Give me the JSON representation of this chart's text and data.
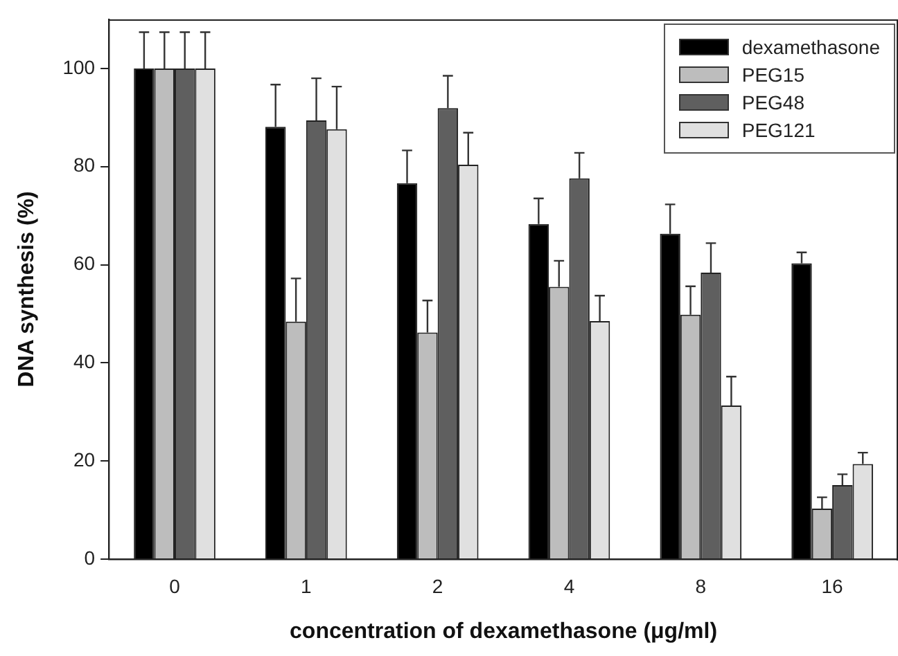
{
  "chart_data": {
    "type": "bar",
    "xlabel": "concentration of dexamethasone (μg/ml)",
    "ylabel": "DNA synthesis (%)",
    "categories": [
      "0",
      "1",
      "2",
      "4",
      "8",
      "16"
    ],
    "series": [
      {
        "name": "dexamethasone",
        "color": "#000000",
        "values": [
          100,
          88.1,
          76.6,
          68.3,
          66.3,
          60.3
        ],
        "errors": [
          [
            100,
            107.4
          ],
          [
            88.1,
            96.7
          ],
          [
            76.6,
            83.3
          ],
          [
            68.3,
            73.5
          ],
          [
            66.3,
            72.3
          ],
          [
            60.3,
            62.5
          ]
        ]
      },
      {
        "name": "PEG15",
        "color": "#bdbdbd",
        "values": [
          100,
          48.4,
          46.2,
          55.5,
          49.8,
          10.3
        ],
        "errors": [
          [
            100,
            107.4
          ],
          [
            48.4,
            57.2
          ],
          [
            46.2,
            52.7
          ],
          [
            55.5,
            60.8
          ],
          [
            49.8,
            55.6
          ],
          [
            10.3,
            12.6
          ]
        ]
      },
      {
        "name": "PEG48",
        "color": "#5f5f5f",
        "values": [
          100,
          89.4,
          91.9,
          77.6,
          58.4,
          15.1
        ],
        "errors": [
          [
            100,
            107.4
          ],
          [
            89.4,
            98.0
          ],
          [
            91.9,
            98.5
          ],
          [
            77.6,
            82.8
          ],
          [
            58.4,
            64.4
          ],
          [
            15.1,
            17.3
          ]
        ]
      },
      {
        "name": "PEG121",
        "color": "#e0e0e0",
        "values": [
          100,
          87.6,
          80.4,
          48.5,
          31.3,
          19.4
        ],
        "errors": [
          [
            100,
            107.4
          ],
          [
            87.6,
            96.3
          ],
          [
            80.4,
            86.9
          ],
          [
            48.5,
            53.7
          ],
          [
            31.3,
            37.2
          ],
          [
            19.4,
            21.7
          ]
        ]
      }
    ],
    "ylim": [
      0,
      110
    ],
    "yticks": [
      0,
      20,
      40,
      60,
      80,
      100
    ],
    "grid": false,
    "legend": "top right"
  }
}
